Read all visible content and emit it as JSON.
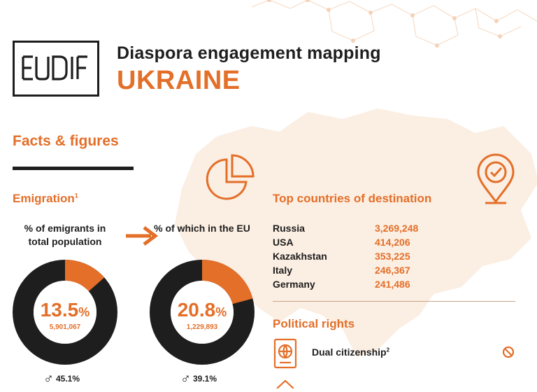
{
  "header": {
    "logo_text": "EUDIF",
    "title": "Diaspora engagement mapping",
    "country": "UKRAINE"
  },
  "facts": {
    "title": "Facts & figures"
  },
  "emigration": {
    "title": "Emigration",
    "footnote": "1",
    "donut1": {
      "label": "% of emigrants in total population",
      "percent_value": "13.5",
      "percent_sign": "%",
      "count": "5,901,067",
      "fraction": 0.135,
      "male_pct": "45.1%"
    },
    "donut2": {
      "label": "% of which in the EU",
      "percent_value": "20.8",
      "percent_sign": "%",
      "count": "1,229,893",
      "fraction": 0.208,
      "male_pct": "39.1%"
    }
  },
  "top_destinations": {
    "title": "Top countries of destination",
    "rows": [
      {
        "country": "Russia",
        "value": "3,269,248"
      },
      {
        "country": "USA",
        "value": "414,206"
      },
      {
        "country": "Kazakhstan",
        "value": "353,225"
      },
      {
        "country": "Italy",
        "value": "246,367"
      },
      {
        "country": "Germany",
        "value": "241,486"
      }
    ]
  },
  "political_rights": {
    "title": "Political rights",
    "dual_citizenship": {
      "label": "Dual citizenship",
      "footnote": "2"
    }
  },
  "colors": {
    "accent": "#e36f29",
    "dark": "#1e1e1e",
    "map": "#fbeee2"
  }
}
